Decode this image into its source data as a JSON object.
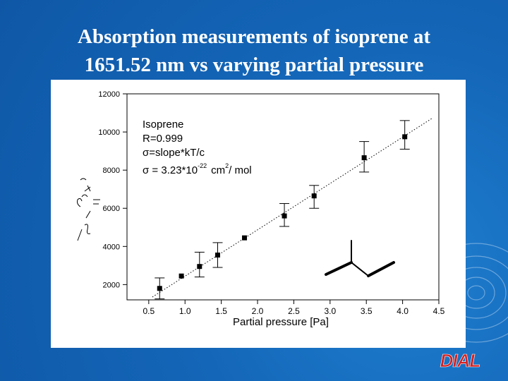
{
  "slide": {
    "title_line1": "Absorption measurements of isoprene at",
    "title_line2": "1651.52 nm vs varying partial pressure",
    "logo_text": "DIAL"
  },
  "colors": {
    "background": "#1466b8",
    "title": "#ffffff",
    "logo": "#d42020",
    "plot_bg": "#ffffff",
    "data": "#000000"
  },
  "chart_data": {
    "type": "scatter",
    "xlabel": "Partial pressure [Pa]",
    "ylabel": "",
    "xlim": [
      0.2,
      4.5
    ],
    "ylim": [
      1200,
      12000
    ],
    "xticks": [
      "0.5",
      "1.0",
      "1.5",
      "2.0",
      "2.5",
      "3.0",
      "3.5",
      "4.0",
      "4.5"
    ],
    "yticks": [
      "2000",
      "4000",
      "6000",
      "8000",
      "10000",
      "12000"
    ],
    "grid": false,
    "series": [
      {
        "x": [
          0.65,
          0.95,
          1.2,
          1.45,
          1.82,
          2.37,
          2.78,
          3.47,
          4.03
        ],
        "y": [
          1800,
          2450,
          2950,
          3550,
          4450,
          5600,
          6650,
          8650,
          9750
        ],
        "yerr_plus": [
          550,
          0,
          750,
          650,
          0,
          650,
          550,
          850,
          850
        ],
        "yerr_minus": [
          550,
          0,
          550,
          650,
          0,
          550,
          650,
          750,
          650
        ]
      }
    ],
    "fit_line": {
      "x": [
        0.55,
        4.4
      ],
      "y": [
        1350,
        10700
      ]
    },
    "annotations": [
      "Isoprene",
      "R=0.999",
      "σ=slope*kT/c",
      "σ = 3.23*10",
      "-22",
      "cm",
      "2",
      "/ mol"
    ]
  }
}
